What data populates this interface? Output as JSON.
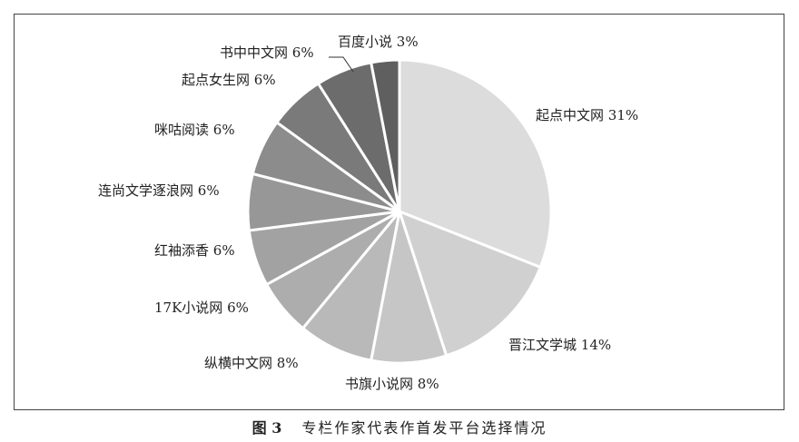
{
  "chart_data": {
    "type": "pie",
    "start": "12 o'clock",
    "direction": "clockwise",
    "unit": "%",
    "slices": [
      {
        "label": "起点中文网",
        "value": 31,
        "color": "#dcdcdc"
      },
      {
        "label": "晋江文学城",
        "value": 14,
        "color": "#d0d0d0"
      },
      {
        "label": "书旗小说网",
        "value": 8,
        "color": "#c6c6c6"
      },
      {
        "label": "纵横中文网",
        "value": 8,
        "color": "#b9b9b9"
      },
      {
        "label": "17K小说网",
        "value": 6,
        "color": "#adadad"
      },
      {
        "label": "红袖添香",
        "value": 6,
        "color": "#a2a2a2"
      },
      {
        "label": "连尚文学逐浪网",
        "value": 6,
        "color": "#979797"
      },
      {
        "label": "咪咕阅读",
        "value": 6,
        "color": "#8c8c8c"
      },
      {
        "label": "起点女生网",
        "value": 6,
        "color": "#7a7a7a"
      },
      {
        "label": "书中中文网",
        "value": 6,
        "color": "#6c6c6c"
      },
      {
        "label": "百度小说",
        "value": 3,
        "color": "#5f5f5f"
      }
    ]
  },
  "caption": {
    "figure": "图 3",
    "title": "专栏作家代表作首发平台选择情况"
  }
}
